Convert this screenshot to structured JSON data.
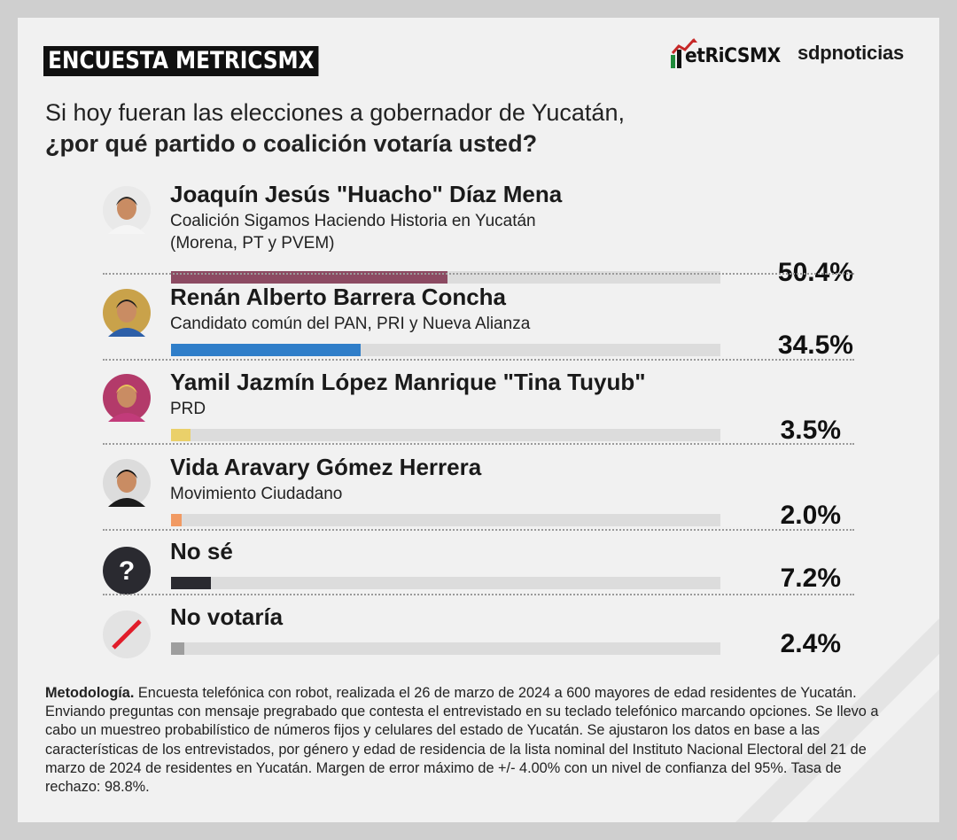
{
  "header": {
    "tag": "ENCUESTA METRICSMX",
    "brand_logo": "metricsmx",
    "brand_partner": "sdpnoticias"
  },
  "question": {
    "line1": "Si hoy fueran las elecciones a gobernador de Yucatán,",
    "line2": "¿por qué partido o coalición votaría usted?"
  },
  "chart_data": {
    "type": "bar",
    "unit": "%",
    "categories": [
      "Joaquín Jesús \"Huacho\" Díaz Mena",
      "Renán Alberto Barrera Concha",
      "Yamil Jazmín López Manrique \"Tina Tuyub\"",
      "Vida Aravary Gómez Herrera",
      "No sé",
      "No votaría"
    ],
    "values": [
      50.4,
      34.5,
      3.5,
      2.0,
      7.2,
      2.4
    ],
    "value_labels": [
      "50.4%",
      "34.5%",
      "3.5%",
      "2.0%",
      "7.2%",
      "2.4%"
    ],
    "parties": [
      [
        "Coalición Sigamos Haciendo Historia en Yucatán",
        "(Morena, PT y PVEM)"
      ],
      [
        "Candidato común del PAN, PRI y Nueva Alianza"
      ],
      [
        "PRD"
      ],
      [
        "Movimiento Ciudadano"
      ],
      [],
      []
    ],
    "colors": [
      "#8c4a62",
      "#2f7ec9",
      "#ead06a",
      "#f19a63",
      "#2a2a30",
      "#9e9e9e"
    ],
    "icons": [
      "candidate-photo",
      "candidate-photo",
      "candidate-photo",
      "candidate-photo",
      "question-icon",
      "no-vote-icon"
    ],
    "xlim": [
      0,
      100
    ]
  },
  "methodology": {
    "label": "Metodología.",
    "text": " Encuesta telefónica con robot, realizada el 26 de marzo de 2024 a 600 mayores de edad residentes de Yucatán. Enviando preguntas con mensaje pregrabado que contesta el entrevistado en su teclado telefónico marcando opciones. Se llevo a cabo un muestreo probabilístico de números fijos y celulares del estado de Yucatán. Se ajustaron los datos en base a las características de los entrevistados, por género y edad de residencia de la lista nominal del Instituto Nacional Electoral del 21 de marzo de 2024 de residentes en Yucatán. Margen de error máximo de +/- 4.00% con un nivel de confianza del 95%. Tasa de rechazo: 98.8%."
  }
}
